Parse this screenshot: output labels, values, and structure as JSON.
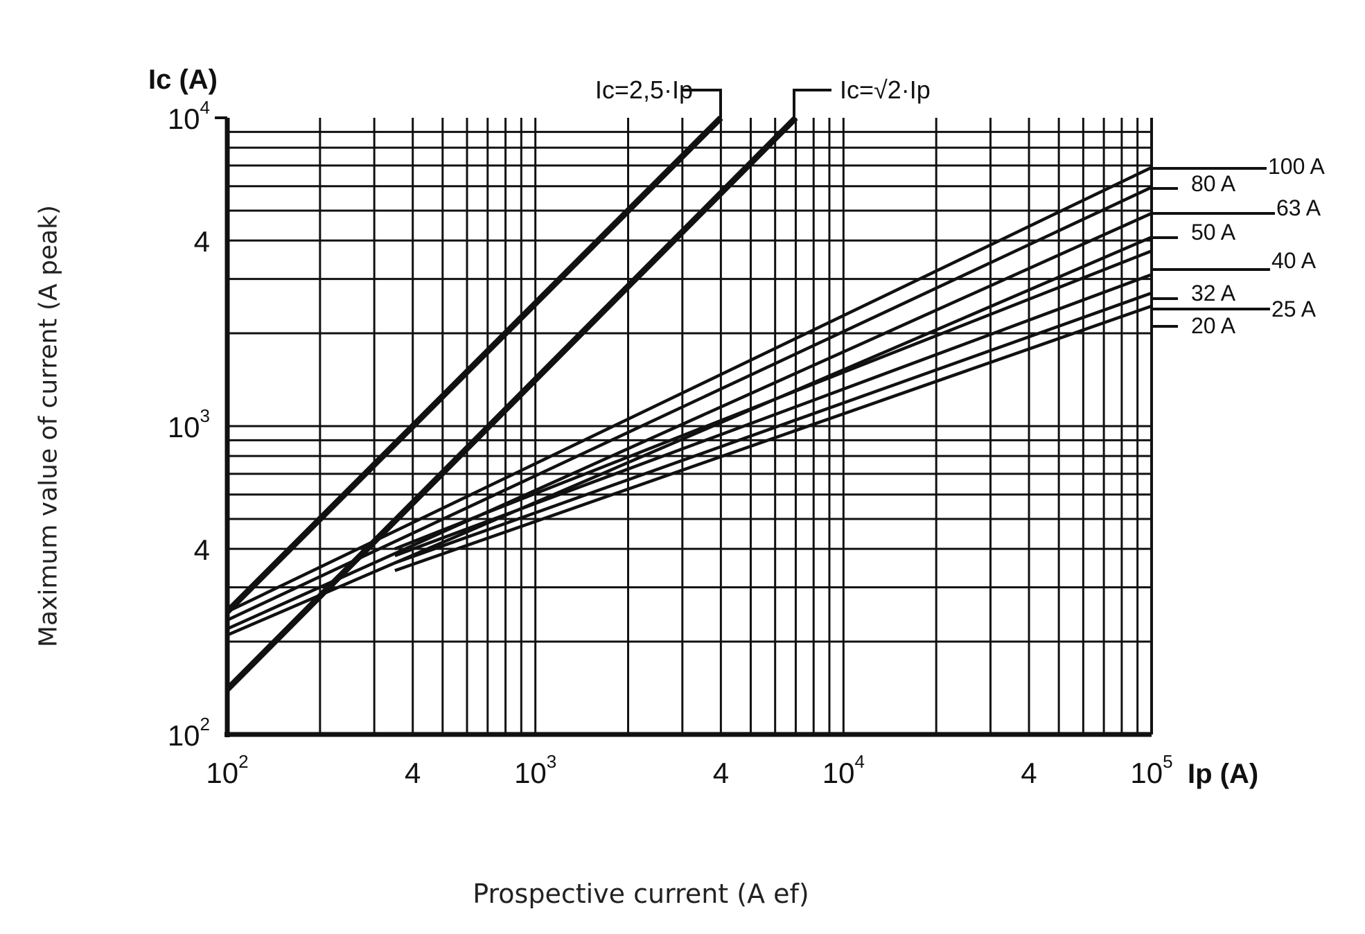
{
  "chart_data": {
    "type": "line",
    "xscale": "log",
    "yscale": "log",
    "xlim": [
      100,
      100000
    ],
    "ylim": [
      100,
      10000
    ],
    "grid": true,
    "xlabel": "Prospective current (A ef)",
    "ylabel": "Maximum value of current (A peak)",
    "x_axis_name": "Ip (A)",
    "y_axis_name": "Ic (A)",
    "x_tick_labels": [
      {
        "value": 100,
        "base": "10",
        "exp": "2"
      },
      {
        "value": 400,
        "base": "4",
        "exp": ""
      },
      {
        "value": 1000,
        "base": "10",
        "exp": "3"
      },
      {
        "value": 4000,
        "base": "4",
        "exp": ""
      },
      {
        "value": 10000,
        "base": "10",
        "exp": "4"
      },
      {
        "value": 40000,
        "base": "4",
        "exp": ""
      },
      {
        "value": 100000,
        "base": "10",
        "exp": "5"
      }
    ],
    "y_tick_labels": [
      {
        "value": 100,
        "base": "10",
        "exp": "2"
      },
      {
        "value": 400,
        "base": "4",
        "exp": ""
      },
      {
        "value": 1000,
        "base": "10",
        "exp": "3"
      },
      {
        "value": 4000,
        "base": "4",
        "exp": ""
      },
      {
        "value": 10000,
        "base": "10",
        "exp": "4"
      }
    ],
    "series": [
      {
        "name": "Ic=2,5·Ip",
        "points": [
          [
            100,
            250
          ],
          [
            4000,
            10000
          ]
        ]
      },
      {
        "name": "Ic=√2·Ip",
        "points": [
          [
            100,
            140
          ],
          [
            7000,
            10000
          ]
        ]
      },
      {
        "name": "100 A",
        "points": [
          [
            100,
            250
          ],
          [
            100000,
            6900
          ]
        ]
      },
      {
        "name": "80 A",
        "points": [
          [
            100,
            235
          ],
          [
            100000,
            5950
          ]
        ]
      },
      {
        "name": "63 A",
        "points": [
          [
            100,
            220
          ],
          [
            100000,
            4900
          ]
        ]
      },
      {
        "name": "50 A",
        "points": [
          [
            100,
            210
          ],
          [
            100000,
            4100
          ]
        ]
      },
      {
        "name": "40 A",
        "points": [
          [
            350,
            400
          ],
          [
            100000,
            3700
          ]
        ]
      },
      {
        "name": "32 A",
        "points": [
          [
            350,
            380
          ],
          [
            100000,
            3100
          ]
        ]
      },
      {
        "name": "25 A",
        "points": [
          [
            350,
            360
          ],
          [
            100000,
            2700
          ]
        ]
      },
      {
        "name": "20 A",
        "points": [
          [
            350,
            340
          ],
          [
            100000,
            2450
          ]
        ]
      }
    ],
    "annotations": [
      {
        "text": "Ic=2,5·Ip"
      },
      {
        "text": "Ic=√2·Ip"
      },
      {
        "text": "100 A"
      },
      {
        "text": "80 A"
      },
      {
        "text": "63 A"
      },
      {
        "text": "50 A"
      },
      {
        "text": "40 A"
      },
      {
        "text": "32 A"
      },
      {
        "text": "25 A"
      },
      {
        "text": "20 A"
      }
    ]
  }
}
